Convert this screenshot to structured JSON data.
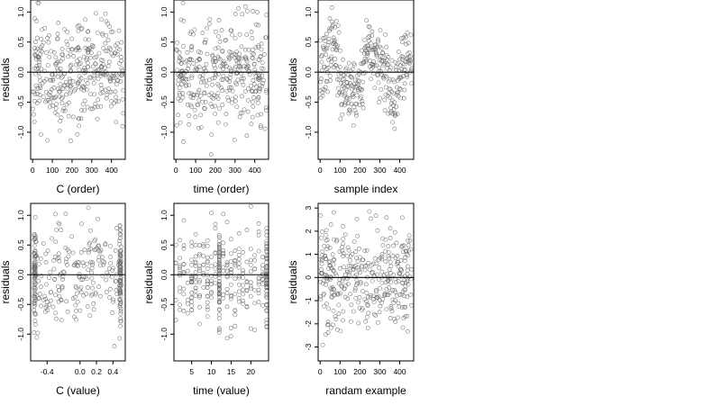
{
  "chart_data": [
    {
      "type": "scatter",
      "xlabel": "C (order)",
      "ylabel": "residuals",
      "xlim": [
        -10,
        470
      ],
      "ylim": [
        -1.45,
        1.2
      ],
      "xticks": [
        0,
        100,
        200,
        300,
        400
      ],
      "xtick_labels": [
        "0",
        "100",
        "200",
        "300",
        "400"
      ],
      "yticks": [
        -1.0,
        -0.5,
        0.0,
        0.5,
        1.0
      ],
      "ytick_labels": [
        "-1.0",
        "-0.5",
        "0.0",
        "0.5",
        "1.0"
      ],
      "hline": 0,
      "grid": false,
      "legend": "none",
      "pattern": "order",
      "n_points": 360,
      "x_range": [
        0,
        460
      ],
      "sigma": 0.45,
      "seed": 11
    },
    {
      "type": "scatter",
      "xlabel": "time (order)",
      "ylabel": "residuals",
      "xlim": [
        -10,
        470
      ],
      "ylim": [
        -1.45,
        1.2
      ],
      "xticks": [
        0,
        100,
        200,
        300,
        400
      ],
      "xtick_labels": [
        "0",
        "100",
        "200",
        "300",
        "400"
      ],
      "yticks": [
        -1.0,
        -0.5,
        0.0,
        0.5,
        1.0
      ],
      "ytick_labels": [
        "-1.0",
        "-0.5",
        "0.0",
        "0.5",
        "1.0"
      ],
      "hline": 0,
      "grid": false,
      "legend": "none",
      "pattern": "order",
      "n_points": 360,
      "x_range": [
        0,
        460
      ],
      "sigma": 0.42,
      "seed": 23
    },
    {
      "type": "scatter",
      "xlabel": "sample index",
      "ylabel": "residuals",
      "xlim": [
        -10,
        470
      ],
      "ylim": [
        -1.45,
        1.2
      ],
      "xticks": [
        0,
        100,
        200,
        300,
        400
      ],
      "xtick_labels": [
        "0",
        "100",
        "200",
        "300",
        "400"
      ],
      "yticks": [
        -1.0,
        -0.5,
        0.0,
        0.5,
        1.0
      ],
      "ytick_labels": [
        "-1.0",
        "-0.5",
        "0.0",
        "0.5",
        "1.0"
      ],
      "hline": 0,
      "grid": false,
      "legend": "none",
      "pattern": "index",
      "n_points": 360,
      "x_range": [
        0,
        460
      ],
      "sigma": 0.28,
      "seed": 37
    },
    {
      "type": "scatter",
      "xlabel": "C (value)",
      "ylabel": "residuals",
      "xlim": [
        -0.6,
        0.55
      ],
      "ylim": [
        -1.45,
        1.2
      ],
      "xticks": [
        -0.4,
        0.0,
        0.2,
        0.4
      ],
      "xtick_labels": [
        "-0.4",
        "0.0",
        "0.2",
        "0.4"
      ],
      "yticks": [
        -1.0,
        -0.5,
        0.0,
        0.5,
        1.0
      ],
      "ytick_labels": [
        "-1.0",
        "-0.5",
        "0.0",
        "0.5",
        "1.0"
      ],
      "hline": 0,
      "grid": false,
      "legend": "none",
      "pattern": "value",
      "n_points": 360,
      "x_range": [
        -0.55,
        0.5
      ],
      "sigma": 0.42,
      "seed": 41,
      "dense_columns": [
        -0.55,
        0.49
      ]
    },
    {
      "type": "scatter",
      "xlabel": "time (value)",
      "ylabel": "residuals",
      "xlim": [
        0.5,
        24.5
      ],
      "ylim": [
        -1.45,
        1.2
      ],
      "xticks": [
        5,
        10,
        15,
        20
      ],
      "xtick_labels": [
        "5",
        "10",
        "15",
        "20"
      ],
      "yticks": [
        -1.0,
        -0.5,
        0.0,
        0.5,
        1.0
      ],
      "ytick_labels": [
        "-1.0",
        "-0.5",
        "0.0",
        "0.5",
        "1.0"
      ],
      "hline": 0,
      "grid": false,
      "legend": "none",
      "pattern": "time",
      "n_points": 360,
      "x_range": [
        1,
        24
      ],
      "sigma": 0.42,
      "seed": 53,
      "dense_columns": [
        12,
        24
      ]
    },
    {
      "type": "scatter",
      "xlabel": "randam example",
      "ylabel": "residuals",
      "xlim": [
        -10,
        470
      ],
      "ylim": [
        -3.6,
        3.2
      ],
      "xticks": [
        0,
        100,
        200,
        300,
        400
      ],
      "xtick_labels": [
        "0",
        "100",
        "200",
        "300",
        "400"
      ],
      "yticks": [
        -3,
        -2,
        -1,
        0,
        1,
        2,
        3
      ],
      "ytick_labels": [
        "-3",
        "-2",
        "-1",
        "0",
        "1",
        "2",
        "3"
      ],
      "hline": 0,
      "grid": false,
      "legend": "none",
      "pattern": "random",
      "n_points": 360,
      "x_range": [
        0,
        460
      ],
      "sigma": 1.0,
      "seed": 67
    }
  ]
}
